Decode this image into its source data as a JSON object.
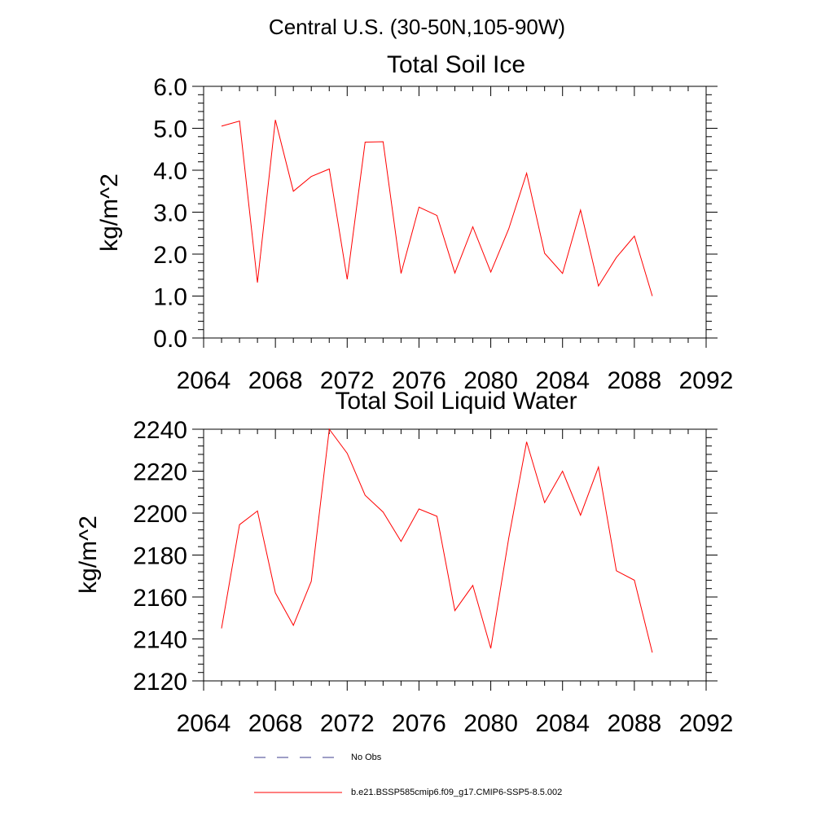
{
  "page": {
    "title": "Central U.S. (30-50N,105-90W)"
  },
  "chart_data": [
    {
      "type": "line",
      "title": "Total Soil Ice",
      "xlabel": "",
      "ylabel": "kg/m^2",
      "xlim": [
        2064,
        2092
      ],
      "ylim": [
        0,
        6
      ],
      "x_ticks": [
        2064,
        2068,
        2072,
        2076,
        2080,
        2084,
        2088,
        2092
      ],
      "x_tick_labels": [
        "2064",
        "2068",
        "2072",
        "2076",
        "2080",
        "2084",
        "2088",
        "2092"
      ],
      "y_ticks": [
        0,
        1,
        2,
        3,
        4,
        5,
        6
      ],
      "y_tick_labels": [
        "0.0",
        "1.0",
        "2.0",
        "3.0",
        "4.0",
        "5.0",
        "6.0"
      ],
      "grid": false,
      "series": [
        {
          "name": "b.e21.BSSP585cmip6.f09_g17.CMIP6-SSP5-8.5.002",
          "color": "#ff0000",
          "x": [
            2065,
            2066,
            2067,
            2068,
            2069,
            2070,
            2071,
            2072,
            2073,
            2074,
            2075,
            2076,
            2077,
            2078,
            2079,
            2080,
            2081,
            2082,
            2083,
            2084,
            2085,
            2086,
            2087,
            2088,
            2089
          ],
          "values": [
            5.05,
            5.17,
            1.32,
            5.2,
            3.5,
            3.85,
            4.03,
            1.4,
            4.67,
            4.68,
            1.54,
            3.12,
            2.92,
            1.55,
            2.65,
            1.57,
            2.6,
            3.93,
            2.02,
            1.54,
            3.05,
            1.24,
            1.92,
            2.43,
            1.0
          ]
        }
      ]
    },
    {
      "type": "line",
      "title": "Total Soil Liquid Water",
      "xlabel": "",
      "ylabel": "kg/m^2",
      "xlim": [
        2064,
        2092
      ],
      "ylim": [
        2120,
        2240
      ],
      "x_ticks": [
        2064,
        2068,
        2072,
        2076,
        2080,
        2084,
        2088,
        2092
      ],
      "x_tick_labels": [
        "2064",
        "2068",
        "2072",
        "2076",
        "2080",
        "2084",
        "2088",
        "2092"
      ],
      "y_ticks": [
        2120,
        2140,
        2160,
        2180,
        2200,
        2220,
        2240
      ],
      "y_tick_labels": [
        "2120",
        "2140",
        "2160",
        "2180",
        "2200",
        "2220",
        "2240"
      ],
      "grid": false,
      "series": [
        {
          "name": "b.e21.BSSP585cmip6.f09_g17.CMIP6-SSP5-8.5.002",
          "color": "#ff0000",
          "x": [
            2065,
            2066,
            2067,
            2068,
            2069,
            2070,
            2071,
            2072,
            2073,
            2074,
            2075,
            2076,
            2077,
            2078,
            2079,
            2080,
            2081,
            2082,
            2083,
            2084,
            2085,
            2086,
            2087,
            2088,
            2089
          ],
          "values": [
            2145,
            2194.5,
            2201,
            2162,
            2146.5,
            2167.5,
            2240,
            2228.5,
            2208.5,
            2200.5,
            2186.5,
            2202,
            2198.5,
            2153.5,
            2165.5,
            2135.5,
            2188,
            2234,
            2205,
            2220,
            2199,
            2222,
            2172.5,
            2168,
            2133.5
          ]
        }
      ]
    }
  ],
  "legend": {
    "placement": "bottom",
    "items": [
      {
        "label": "No Obs",
        "color": "#3c3c8c",
        "style": "dashed"
      },
      {
        "label": "b.e21.BSSP585cmip6.f09_g17.CMIP6-SSP5-8.5.002",
        "color": "#ff0000",
        "style": "solid"
      }
    ]
  }
}
